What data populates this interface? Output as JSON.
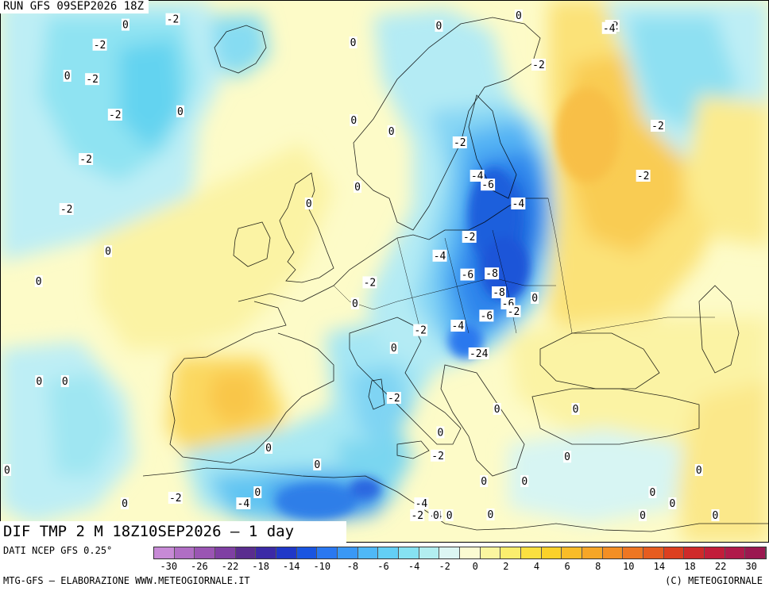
{
  "header": {
    "run_title": "RUN GFS 09SEP2026 18Z"
  },
  "field_title": "DIF TMP 2 M 18Z10SEP2026 – 1 day",
  "source_label": "DATI NCEP GFS 0.25°",
  "footer": {
    "left": "MTG-GFS – ELABORAZIONE WWW.METEOGIORNALE.IT",
    "right": "(C) METEOGIORNALE"
  },
  "legend": {
    "swatches": [
      "#c78ad6",
      "#b06ec4",
      "#9a55b3",
      "#7f3fa3",
      "#5a2d8f",
      "#3c2aa6",
      "#2038c8",
      "#1a55e0",
      "#2a78f0",
      "#3a98f5",
      "#4fb8f7",
      "#63cff5",
      "#86e2f2",
      "#b2eef0",
      "#dcf6f3",
      "#fbfbd2",
      "#fbf6a0",
      "#fbee6e",
      "#fbe040",
      "#fbd12a",
      "#f9bc28",
      "#f6a627",
      "#f38f24",
      "#ee7622",
      "#e65c1f",
      "#dc3f1f",
      "#cf2a2a",
      "#c21d3a",
      "#b01a4a",
      "#9b1850"
    ],
    "ticks": [
      "-30",
      "-26",
      "-22",
      "-18",
      "-14",
      "-10",
      "-8",
      "-6",
      "-4",
      "-2",
      "0",
      "2",
      "4",
      "6",
      "8",
      "10",
      "14",
      "18",
      "22",
      "30"
    ]
  },
  "map_labels": [
    {
      "text": "0",
      "lon": -22.8,
      "lat": 71.6
    },
    {
      "text": "-2",
      "lon": -16.2,
      "lat": 72.1
    },
    {
      "text": "-2",
      "lon": -26.0,
      "lat": 69.8
    },
    {
      "text": "0",
      "lon": -29.8,
      "lat": 67.0
    },
    {
      "text": "-2",
      "lon": -26.3,
      "lat": 66.7
    },
    {
      "text": "0",
      "lon": -13.8,
      "lat": 63.8
    },
    {
      "text": "-2",
      "lon": -22.5,
      "lat": 63.5
    },
    {
      "text": "-2",
      "lon": -25.5,
      "lat": 59.5
    },
    {
      "text": "-2",
      "lon": -27.0,
      "lat": 55.0
    },
    {
      "text": "0",
      "lon": -21.0,
      "lat": 51.2
    },
    {
      "text": "0",
      "lon": -29.0,
      "lat": 48.5
    },
    {
      "text": "0",
      "lon": -27.0,
      "lat": 39.5
    },
    {
      "text": "0",
      "lon": -24.0,
      "lat": 39.5
    },
    {
      "text": "0",
      "lon": -29.0,
      "lat": 31.5
    },
    {
      "text": "0",
      "lon": -15.5,
      "lat": 28.5
    },
    {
      "text": "-2",
      "lon": -10.0,
      "lat": 29.0
    },
    {
      "text": "-4",
      "lon": -2.5,
      "lat": 28.5
    },
    {
      "text": "0",
      "lon": -1.0,
      "lat": 29.5
    },
    {
      "text": "0",
      "lon": 9.4,
      "lat": 70.0
    },
    {
      "text": "0",
      "lon": 21.5,
      "lat": 71.5
    },
    {
      "text": "0",
      "lon": 33.0,
      "lat": 73.0
    },
    {
      "text": "0",
      "lon": 9.5,
      "lat": 63.0
    },
    {
      "text": "-2",
      "lon": 35.0,
      "lat": 68.0
    },
    {
      "text": "0",
      "lon": 14.5,
      "lat": 62.0
    },
    {
      "text": "-2",
      "lon": 23.5,
      "lat": 61.0
    },
    {
      "text": "-4",
      "lon": 25.5,
      "lat": 58.0
    },
    {
      "text": "-6",
      "lon": 26.8,
      "lat": 57.2
    },
    {
      "text": "0",
      "lon": 10.0,
      "lat": 57.0
    },
    {
      "text": "0",
      "lon": 3.8,
      "lat": 55.5
    },
    {
      "text": "-4",
      "lon": 30.5,
      "lat": 55.5
    },
    {
      "text": "-2",
      "lon": 24.0,
      "lat": 52.5
    },
    {
      "text": "-4",
      "lon": 20.2,
      "lat": 50.8
    },
    {
      "text": "-6",
      "lon": 23.5,
      "lat": 49.1
    },
    {
      "text": "-8",
      "lon": 26.5,
      "lat": 49.2
    },
    {
      "text": "-2",
      "lon": 11.5,
      "lat": 48.4
    },
    {
      "text": "-8",
      "lon": 27.2,
      "lat": 47.5
    },
    {
      "text": "0",
      "lon": 9.7,
      "lat": 46.5
    },
    {
      "text": "-6",
      "lon": 28.2,
      "lat": 46.5
    },
    {
      "text": "-2",
      "lon": 28.8,
      "lat": 45.8
    },
    {
      "text": "0",
      "lon": 31.5,
      "lat": 47.0
    },
    {
      "text": "-6",
      "lon": 25.5,
      "lat": 45.4
    },
    {
      "text": "-4",
      "lon": 22.0,
      "lat": 44.5
    },
    {
      "text": "-2",
      "lon": 17.5,
      "lat": 44.1
    },
    {
      "text": "-24",
      "lon": 24.3,
      "lat": 42.0
    },
    {
      "text": "0",
      "lon": 14.3,
      "lat": 42.5
    },
    {
      "text": "-2",
      "lon": 14.2,
      "lat": 38.0
    },
    {
      "text": "0",
      "lon": 26.0,
      "lat": 37.0
    },
    {
      "text": "0",
      "lon": 35.0,
      "lat": 37.0
    },
    {
      "text": "0",
      "lon": 19.4,
      "lat": 34.9
    },
    {
      "text": "0",
      "lon": 5.5,
      "lat": 32.0
    },
    {
      "text": "0",
      "lon": 0.0,
      "lat": 33.5
    },
    {
      "text": "-2",
      "lon": 19.0,
      "lat": 32.8
    },
    {
      "text": "0",
      "lon": 24.0,
      "lat": 30.5
    },
    {
      "text": "0",
      "lon": 28.5,
      "lat": 30.5
    },
    {
      "text": "0",
      "lon": 33.5,
      "lat": 32.7
    },
    {
      "text": "-4",
      "lon": 17.0,
      "lat": 28.5
    },
    {
      "text": "-2",
      "lon": 16.5,
      "lat": 27.0
    },
    {
      "text": "-4",
      "lon": 18.5,
      "lat": 27.0
    },
    {
      "text": "0",
      "lon": 20.0,
      "lat": 27.3
    },
    {
      "text": "0",
      "lon": 24.5,
      "lat": 27.5
    },
    {
      "text": "0",
      "lon": 18.5,
      "lat": 26.0
    },
    {
      "text": "-2",
      "lon": 46.0,
      "lat": 71.5
    },
    {
      "text": "-4",
      "lon": 45.5,
      "lat": 71.3
    },
    {
      "text": "-2",
      "lon": 50.0,
      "lat": 62.5
    },
    {
      "text": "-2",
      "lon": 47.0,
      "lat": 58.0
    },
    {
      "text": "0",
      "lon": 44.5,
      "lat": 28.5
    },
    {
      "text": "0",
      "lon": 48.0,
      "lat": 31.5
    },
    {
      "text": "0",
      "lon": 48.5,
      "lat": 25.0
    },
    {
      "text": "0",
      "lon": 41.0,
      "lat": 27.0
    },
    {
      "text": "0",
      "lon": 42.5,
      "lat": 29.5
    }
  ]
}
